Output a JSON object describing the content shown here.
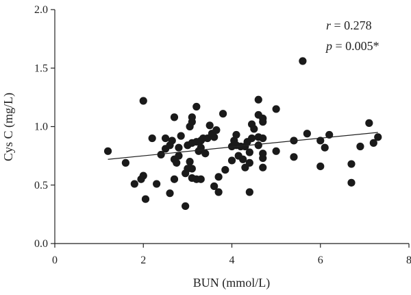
{
  "chart_data": {
    "type": "scatter",
    "xlabel": "BUN (mmol/L)",
    "ylabel": "Cys C (mg/L)",
    "xlim": [
      0,
      8
    ],
    "ylim": [
      0.0,
      2.0
    ],
    "x_ticks": [
      0,
      2,
      4,
      6,
      8
    ],
    "y_ticks": [
      0.0,
      0.5,
      1.0,
      1.5,
      2.0
    ],
    "x_tick_labels": [
      "0",
      "2",
      "4",
      "6",
      "8"
    ],
    "y_tick_labels": [
      "0.0",
      "0.5",
      "1.0",
      "1.5",
      "2.0"
    ],
    "grid": false,
    "annotation": {
      "r_symbol": "r",
      "r_text": " = 0.278",
      "p_symbol": "p",
      "p_text": " = 0.005*"
    },
    "fit_line": {
      "x": [
        1.2,
        7.3
      ],
      "y": [
        0.72,
        0.95
      ]
    },
    "series": [
      {
        "points": [
          [
            1.2,
            0.79
          ],
          [
            1.6,
            0.69
          ],
          [
            1.8,
            0.51
          ],
          [
            1.95,
            0.55
          ],
          [
            2.0,
            0.58
          ],
          [
            2.0,
            1.22
          ],
          [
            2.05,
            0.38
          ],
          [
            2.2,
            0.9
          ],
          [
            2.3,
            0.51
          ],
          [
            2.4,
            0.76
          ],
          [
            2.5,
            0.81
          ],
          [
            2.5,
            0.9
          ],
          [
            2.6,
            0.84
          ],
          [
            2.6,
            0.43
          ],
          [
            2.65,
            0.88
          ],
          [
            2.7,
            0.55
          ],
          [
            2.7,
            0.72
          ],
          [
            2.7,
            1.08
          ],
          [
            2.75,
            0.69
          ],
          [
            2.8,
            0.75
          ],
          [
            2.8,
            0.82
          ],
          [
            2.85,
            0.92
          ],
          [
            2.95,
            0.32
          ],
          [
            2.95,
            0.6
          ],
          [
            3.0,
            0.64
          ],
          [
            3.0,
            0.84
          ],
          [
            3.05,
            0.7
          ],
          [
            3.05,
            1.0
          ],
          [
            3.1,
            0.56
          ],
          [
            3.1,
            0.64
          ],
          [
            3.1,
            0.86
          ],
          [
            3.1,
            1.04
          ],
          [
            3.1,
            1.08
          ],
          [
            3.2,
            0.55
          ],
          [
            3.2,
            0.87
          ],
          [
            3.2,
            1.17
          ],
          [
            3.25,
            0.79
          ],
          [
            3.3,
            0.55
          ],
          [
            3.3,
            0.82
          ],
          [
            3.3,
            0.88
          ],
          [
            3.35,
            0.9
          ],
          [
            3.4,
            0.77
          ],
          [
            3.45,
            0.9
          ],
          [
            3.5,
            1.01
          ],
          [
            3.55,
            0.94
          ],
          [
            3.6,
            0.49
          ],
          [
            3.6,
            0.91
          ],
          [
            3.65,
            0.97
          ],
          [
            3.7,
            0.44
          ],
          [
            3.7,
            0.57
          ],
          [
            3.8,
            1.11
          ],
          [
            3.85,
            0.63
          ],
          [
            4.0,
            0.71
          ],
          [
            4.0,
            0.83
          ],
          [
            4.05,
            0.88
          ],
          [
            4.1,
            0.84
          ],
          [
            4.1,
            0.93
          ],
          [
            4.15,
            0.75
          ],
          [
            4.2,
            0.83
          ],
          [
            4.25,
            0.72
          ],
          [
            4.3,
            0.65
          ],
          [
            4.3,
            0.83
          ],
          [
            4.35,
            0.87
          ],
          [
            4.4,
            0.44
          ],
          [
            4.4,
            0.69
          ],
          [
            4.4,
            0.78
          ],
          [
            4.45,
            0.9
          ],
          [
            4.45,
            1.02
          ],
          [
            4.5,
            0.98
          ],
          [
            4.6,
            0.84
          ],
          [
            4.6,
            0.91
          ],
          [
            4.6,
            1.1
          ],
          [
            4.6,
            1.23
          ],
          [
            4.7,
            0.65
          ],
          [
            4.7,
            0.73
          ],
          [
            4.7,
            0.77
          ],
          [
            4.7,
            1.04
          ],
          [
            4.7,
            1.07
          ],
          [
            4.7,
            0.9
          ],
          [
            5.0,
            0.79
          ],
          [
            5.0,
            1.15
          ],
          [
            5.4,
            0.74
          ],
          [
            5.4,
            0.88
          ],
          [
            5.6,
            1.56
          ],
          [
            5.7,
            0.94
          ],
          [
            6.0,
            0.66
          ],
          [
            6.0,
            0.88
          ],
          [
            6.1,
            0.82
          ],
          [
            6.2,
            0.93
          ],
          [
            6.7,
            0.52
          ],
          [
            6.7,
            0.68
          ],
          [
            6.9,
            0.83
          ],
          [
            7.1,
            1.03
          ],
          [
            7.2,
            0.86
          ],
          [
            7.3,
            0.91
          ]
        ]
      }
    ]
  }
}
